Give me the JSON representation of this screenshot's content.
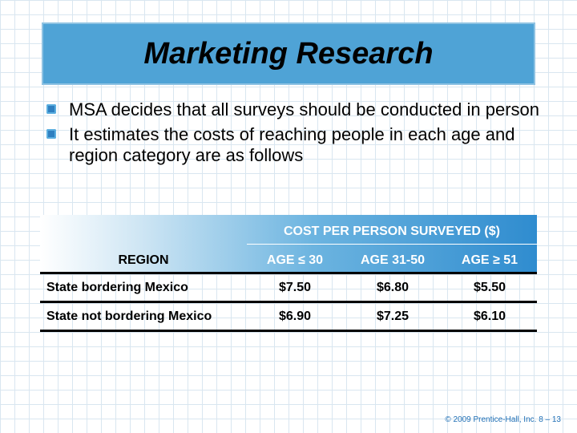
{
  "slide": {
    "title": "Marketing Research",
    "bullets": [
      "MSA decides that all surveys should be conducted in person",
      "It estimates the costs of reaching people in each age and region category are as follows"
    ],
    "footer": "© 2009 Prentice-Hall, Inc.   8 – 13"
  },
  "table": {
    "group_header": "COST PER PERSON SURVEYED ($)",
    "col_headers": [
      "REGION",
      "AGE ≤ 30",
      "AGE 31-50",
      "AGE ≥ 51"
    ],
    "rows": [
      {
        "region": "State bordering Mexico",
        "values": [
          "$7.50",
          "$6.80",
          "$5.50"
        ]
      },
      {
        "region": "State not bordering Mexico",
        "values": [
          "$6.90",
          "$7.25",
          "$6.10"
        ]
      }
    ]
  },
  "colors": {
    "title_bg": "#4fa3d6",
    "bullet": "#2e7fc0",
    "footer": "#1f6fb5"
  }
}
